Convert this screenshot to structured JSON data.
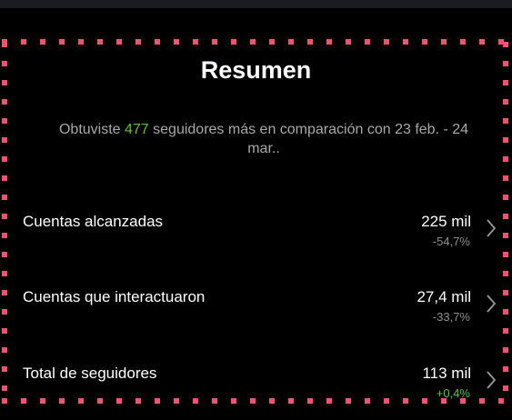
{
  "header": {
    "title": "Resumen"
  },
  "summary": {
    "prefix": "Obtuviste ",
    "highlight": "477",
    "suffix": " seguidores más en comparación con 23 feb. - 24 mar.."
  },
  "rows": [
    {
      "label": "Cuentas alcanzadas",
      "value": "225 mil",
      "change": "-54,7%"
    },
    {
      "label": "Cuentas que interactuaron",
      "value": "27,4 mil",
      "change": "-33,7%"
    },
    {
      "label": "Total de seguidores",
      "value": "113 mil",
      "change": "+0,4%"
    }
  ]
}
